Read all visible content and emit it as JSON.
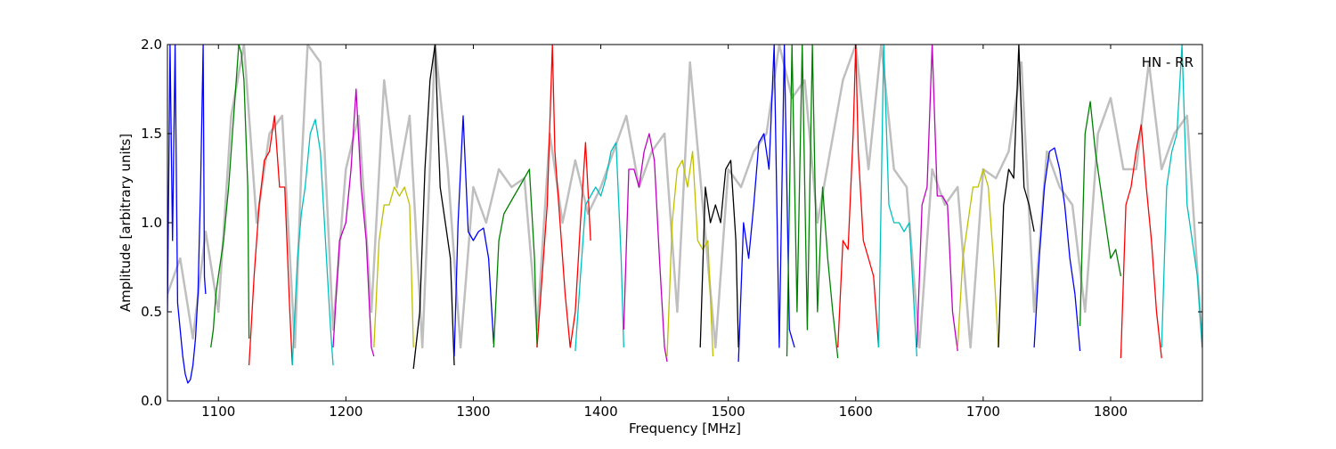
{
  "chart_data": {
    "type": "line",
    "xlabel": "Frequency [MHz]",
    "ylabel": "Amplitude [arbitrary units]",
    "xlim": [
      1060,
      1872
    ],
    "ylim": [
      0,
      2.0
    ],
    "x_ticks": [
      1100,
      1200,
      1300,
      1400,
      1500,
      1600,
      1700,
      1800
    ],
    "x_tick_labels": [
      "1100",
      "1200",
      "1300",
      "1400",
      "1500",
      "1600",
      "1700",
      "1800"
    ],
    "y_ticks": [
      0,
      0.5,
      1.0,
      1.5,
      2.0
    ],
    "y_tick_labels": [
      "0.0",
      "0.5",
      "1.0",
      "1.5",
      "2.0"
    ],
    "annotation": "HN - RR",
    "grid": false,
    "background_series": {
      "color": "#bfbfbf",
      "x": [
        1060,
        1070,
        1080,
        1090,
        1100,
        1110,
        1120,
        1130,
        1140,
        1150,
        1160,
        1165,
        1170,
        1180,
        1190,
        1200,
        1210,
        1220,
        1230,
        1240,
        1250,
        1260,
        1270,
        1280,
        1290,
        1300,
        1310,
        1320,
        1330,
        1340,
        1350,
        1360,
        1370,
        1380,
        1390,
        1400,
        1410,
        1420,
        1430,
        1440,
        1450,
        1460,
        1470,
        1480,
        1490,
        1500,
        1510,
        1520,
        1530,
        1540,
        1550,
        1560,
        1570,
        1580,
        1590,
        1600,
        1610,
        1620,
        1630,
        1640,
        1650,
        1660,
        1670,
        1680,
        1690,
        1700,
        1710,
        1720,
        1730,
        1740,
        1750,
        1760,
        1770,
        1780,
        1790,
        1800,
        1810,
        1820,
        1830,
        1840,
        1850,
        1860,
        1872
      ],
      "y": [
        0.6,
        0.8,
        0.35,
        0.95,
        0.5,
        1.6,
        2.0,
        1.0,
        1.5,
        1.6,
        0.3,
        1.3,
        2.0,
        1.9,
        0.4,
        1.3,
        1.6,
        0.5,
        1.8,
        1.2,
        1.6,
        0.3,
        2.0,
        1.3,
        0.3,
        1.2,
        1.0,
        1.3,
        1.2,
        1.25,
        0.4,
        1.5,
        1.0,
        1.35,
        1.05,
        1.2,
        1.4,
        1.6,
        1.2,
        1.4,
        1.5,
        0.5,
        1.9,
        1.1,
        0.3,
        1.3,
        1.2,
        1.4,
        1.5,
        2.0,
        1.7,
        1.8,
        1.0,
        1.4,
        1.8,
        2.0,
        1.3,
        2.0,
        1.3,
        1.2,
        0.3,
        1.3,
        1.1,
        1.2,
        0.3,
        1.3,
        1.25,
        1.4,
        1.9,
        0.5,
        1.4,
        1.2,
        1.1,
        0.5,
        1.5,
        1.7,
        1.3,
        1.3,
        1.9,
        1.3,
        1.5,
        1.6,
        0.3
      ]
    },
    "series": [
      {
        "color": "#0000ff",
        "x": [
          1060,
          1062,
          1064,
          1066,
          1068,
          1070,
          1072,
          1074,
          1076,
          1078,
          1080,
          1082,
          1084,
          1086,
          1088,
          1089,
          1090
        ],
        "y": [
          0.5,
          2.0,
          0.9,
          2.0,
          0.55,
          0.4,
          0.25,
          0.15,
          0.1,
          0.12,
          0.2,
          0.35,
          0.6,
          1.2,
          2.0,
          0.7,
          0.6
        ]
      },
      {
        "color": "#008000",
        "x": [
          1094,
          1096,
          1098,
          1100,
          1104,
          1108,
          1112,
          1116,
          1118,
          1120,
          1123,
          1124
        ],
        "y": [
          0.3,
          0.4,
          0.6,
          0.7,
          0.9,
          1.2,
          1.6,
          2.0,
          1.95,
          1.8,
          1.2,
          0.35
        ]
      },
      {
        "color": "#ff0000",
        "x": [
          1124,
          1128,
          1132,
          1136,
          1140,
          1144,
          1148,
          1152,
          1156,
          1158
        ],
        "y": [
          0.2,
          0.7,
          1.1,
          1.35,
          1.4,
          1.6,
          1.2,
          1.2,
          0.5,
          0.2
        ]
      },
      {
        "color": "#00bfbf",
        "x": [
          1158,
          1162,
          1165,
          1168,
          1172,
          1176,
          1180,
          1184,
          1188,
          1190
        ],
        "y": [
          0.2,
          0.8,
          1.05,
          1.2,
          1.5,
          1.58,
          1.4,
          0.9,
          0.4,
          0.2
        ]
      },
      {
        "color": "#bf00bf",
        "x": [
          1190,
          1195,
          1200,
          1204,
          1208,
          1212,
          1216,
          1220,
          1222
        ],
        "y": [
          0.3,
          0.9,
          1.0,
          1.3,
          1.75,
          1.2,
          0.9,
          0.3,
          0.25
        ]
      },
      {
        "color": "#bfbf00",
        "x": [
          1222,
          1226,
          1230,
          1234,
          1238,
          1242,
          1246,
          1250,
          1253
        ],
        "y": [
          0.3,
          0.9,
          1.1,
          1.1,
          1.2,
          1.15,
          1.2,
          1.1,
          0.3
        ]
      },
      {
        "color": "#000000",
        "x": [
          1253,
          1258,
          1262,
          1266,
          1270,
          1274,
          1278,
          1282,
          1285
        ],
        "y": [
          0.18,
          0.5,
          1.3,
          1.8,
          2.0,
          1.2,
          1.0,
          0.8,
          0.2
        ]
      },
      {
        "color": "#0000ff",
        "x": [
          1285,
          1288,
          1292,
          1296,
          1300,
          1304,
          1308,
          1312,
          1316
        ],
        "y": [
          0.25,
          1.0,
          1.6,
          0.95,
          0.9,
          0.95,
          0.97,
          0.8,
          0.32
        ]
      },
      {
        "color": "#008000",
        "x": [
          1316,
          1320,
          1324,
          1328,
          1332,
          1336,
          1340,
          1344,
          1348,
          1350
        ],
        "y": [
          0.3,
          0.9,
          1.05,
          1.1,
          1.15,
          1.2,
          1.25,
          1.3,
          0.8,
          0.3
        ]
      },
      {
        "color": "#ff0000",
        "x": [
          1350,
          1354,
          1358,
          1362,
          1364,
          1368,
          1372,
          1376,
          1380,
          1384,
          1388,
          1392
        ],
        "y": [
          0.3,
          0.7,
          1.1,
          2.0,
          1.4,
          1.0,
          0.6,
          0.3,
          0.5,
          1.0,
          1.45,
          0.9
        ]
      },
      {
        "color": "#00bfbf",
        "x": [
          1380,
          1384,
          1388,
          1392,
          1396,
          1400,
          1404,
          1408,
          1412,
          1416,
          1418
        ],
        "y": [
          0.28,
          0.7,
          1.1,
          1.15,
          1.2,
          1.15,
          1.25,
          1.4,
          1.45,
          0.8,
          0.3
        ]
      },
      {
        "color": "#bf00bf",
        "x": [
          1418,
          1422,
          1426,
          1430,
          1434,
          1438,
          1442,
          1446,
          1450,
          1452
        ],
        "y": [
          0.4,
          1.3,
          1.3,
          1.2,
          1.4,
          1.5,
          1.35,
          0.8,
          0.3,
          0.22
        ]
      },
      {
        "color": "#bfbf00",
        "x": [
          1452,
          1456,
          1460,
          1464,
          1468,
          1472,
          1476,
          1480,
          1484,
          1488
        ],
        "y": [
          0.25,
          1.0,
          1.3,
          1.35,
          1.2,
          1.4,
          0.9,
          0.85,
          0.9,
          0.25
        ]
      },
      {
        "color": "#000000",
        "x": [
          1478,
          1482,
          1486,
          1490,
          1494,
          1498,
          1502,
          1506,
          1508
        ],
        "y": [
          0.3,
          1.2,
          1.0,
          1.1,
          1.0,
          1.3,
          1.35,
          0.9,
          0.3
        ]
      },
      {
        "color": "#0000ff",
        "x": [
          1508,
          1512,
          1516,
          1520,
          1524,
          1528,
          1532,
          1536,
          1540,
          1544,
          1548,
          1552
        ],
        "y": [
          0.22,
          1.0,
          0.8,
          1.1,
          1.45,
          1.5,
          1.3,
          2.0,
          0.3,
          2.0,
          0.4,
          0.3
        ]
      },
      {
        "color": "#008000",
        "x": [
          1546,
          1550,
          1554,
          1558,
          1562,
          1566,
          1570,
          1574,
          1578,
          1582,
          1586
        ],
        "y": [
          0.25,
          2.0,
          0.5,
          2.0,
          0.4,
          2.0,
          0.5,
          1.2,
          0.8,
          0.5,
          0.24
        ]
      },
      {
        "color": "#ff0000",
        "x": [
          1586,
          1590,
          1594,
          1598,
          1600,
          1602,
          1606,
          1610,
          1614,
          1618
        ],
        "y": [
          0.3,
          0.9,
          0.85,
          1.5,
          2.0,
          1.4,
          0.9,
          0.8,
          0.7,
          0.3
        ]
      },
      {
        "color": "#00bfbf",
        "x": [
          1618,
          1622,
          1626,
          1630,
          1634,
          1638,
          1642,
          1646,
          1648
        ],
        "y": [
          0.3,
          2.0,
          1.1,
          1.0,
          1.0,
          0.95,
          1.0,
          0.5,
          0.25
        ]
      },
      {
        "color": "#bf00bf",
        "x": [
          1648,
          1652,
          1656,
          1660,
          1664,
          1668,
          1672,
          1676,
          1680
        ],
        "y": [
          0.3,
          1.1,
          1.2,
          2.0,
          1.15,
          1.15,
          1.1,
          0.5,
          0.28
        ]
      },
      {
        "color": "#bfbf00",
        "x": [
          1680,
          1684,
          1688,
          1692,
          1696,
          1700,
          1704,
          1708,
          1712
        ],
        "y": [
          0.3,
          0.8,
          1.0,
          1.2,
          1.2,
          1.3,
          1.2,
          0.8,
          0.3
        ]
      },
      {
        "color": "#000000",
        "x": [
          1712,
          1716,
          1720,
          1724,
          1728,
          1732,
          1736,
          1740
        ],
        "y": [
          0.3,
          1.1,
          1.3,
          1.25,
          2.0,
          1.2,
          1.1,
          0.95
        ]
      },
      {
        "color": "#0000ff",
        "x": [
          1740,
          1744,
          1748,
          1752,
          1756,
          1760,
          1764,
          1768,
          1772,
          1776
        ],
        "y": [
          0.3,
          0.8,
          1.2,
          1.4,
          1.42,
          1.3,
          1.1,
          0.8,
          0.6,
          0.28
        ]
      },
      {
        "color": "#008000",
        "x": [
          1776,
          1780,
          1784,
          1788,
          1792,
          1796,
          1800,
          1804,
          1808
        ],
        "y": [
          0.42,
          1.5,
          1.68,
          1.4,
          1.2,
          1.0,
          0.8,
          0.85,
          0.7
        ]
      },
      {
        "color": "#ff0000",
        "x": [
          1808,
          1812,
          1816,
          1820,
          1824,
          1828,
          1832,
          1836,
          1840
        ],
        "y": [
          0.24,
          1.1,
          1.2,
          1.4,
          1.55,
          1.2,
          0.9,
          0.5,
          0.24
        ]
      },
      {
        "color": "#00bfbf",
        "x": [
          1840,
          1844,
          1848,
          1852,
          1856,
          1860,
          1864,
          1868,
          1872
        ],
        "y": [
          0.3,
          1.2,
          1.4,
          1.5,
          2.0,
          1.1,
          0.9,
          0.7,
          0.3
        ]
      }
    ]
  }
}
